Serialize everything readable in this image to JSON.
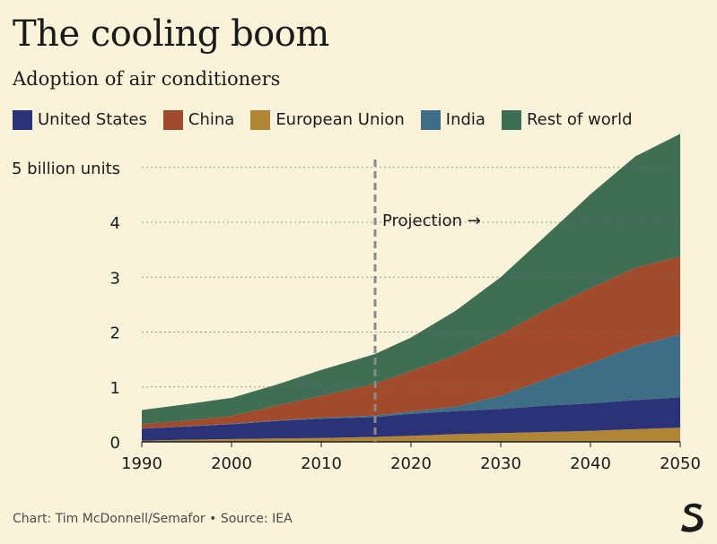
{
  "title": "The cooling boom",
  "subtitle": "Adoption of air conditioners",
  "footer": "Chart: Tim McDonnell/Semafor • Source: IEA",
  "logo": "Semafor S logo",
  "colors": {
    "background": "#f8f3d9",
    "United States": "#2b3278",
    "China": "#a24a2c",
    "European Union": "#b08636",
    "India": "#3e6d86",
    "Rest of world": "#3f6e55"
  },
  "chart_data": {
    "type": "area",
    "stacked": true,
    "x": [
      1990,
      1995,
      2000,
      2005,
      2010,
      2016,
      2020,
      2025,
      2030,
      2035,
      2040,
      2045,
      2050
    ],
    "series": [
      {
        "name": "European Union",
        "values": [
          0.02,
          0.04,
          0.05,
          0.06,
          0.07,
          0.09,
          0.11,
          0.14,
          0.16,
          0.18,
          0.2,
          0.23,
          0.26
        ]
      },
      {
        "name": "United States",
        "values": [
          0.22,
          0.24,
          0.27,
          0.32,
          0.35,
          0.36,
          0.4,
          0.42,
          0.44,
          0.48,
          0.5,
          0.53,
          0.55
        ]
      },
      {
        "name": "India",
        "values": [
          0.005,
          0.005,
          0.01,
          0.01,
          0.02,
          0.03,
          0.04,
          0.08,
          0.24,
          0.48,
          0.73,
          0.98,
          1.15
        ]
      },
      {
        "name": "China",
        "values": [
          0.08,
          0.1,
          0.14,
          0.27,
          0.4,
          0.58,
          0.74,
          0.94,
          1.12,
          1.26,
          1.37,
          1.43,
          1.42
        ]
      },
      {
        "name": "Rest of world",
        "values": [
          0.255,
          0.3,
          0.33,
          0.38,
          0.47,
          0.54,
          0.61,
          0.81,
          1.04,
          1.35,
          1.71,
          2.03,
          2.23
        ]
      }
    ],
    "legend_order": [
      "United States",
      "China",
      "European Union",
      "India",
      "Rest of world"
    ],
    "y_ticks": [
      {
        "value": 0,
        "label": "0"
      },
      {
        "value": 1,
        "label": "1"
      },
      {
        "value": 2,
        "label": "2"
      },
      {
        "value": 3,
        "label": "3"
      },
      {
        "value": 4,
        "label": "4"
      },
      {
        "value": 5,
        "label": "5 billion units"
      }
    ],
    "x_ticks": [
      1990,
      2000,
      2010,
      2020,
      2030,
      2040,
      2050
    ],
    "xlim": [
      1990,
      2050
    ],
    "ylim": [
      0,
      5.6
    ],
    "grid": "horizontal dotted",
    "legend_position": "top",
    "annotation": {
      "x": 2016,
      "label": "Projection →"
    }
  }
}
